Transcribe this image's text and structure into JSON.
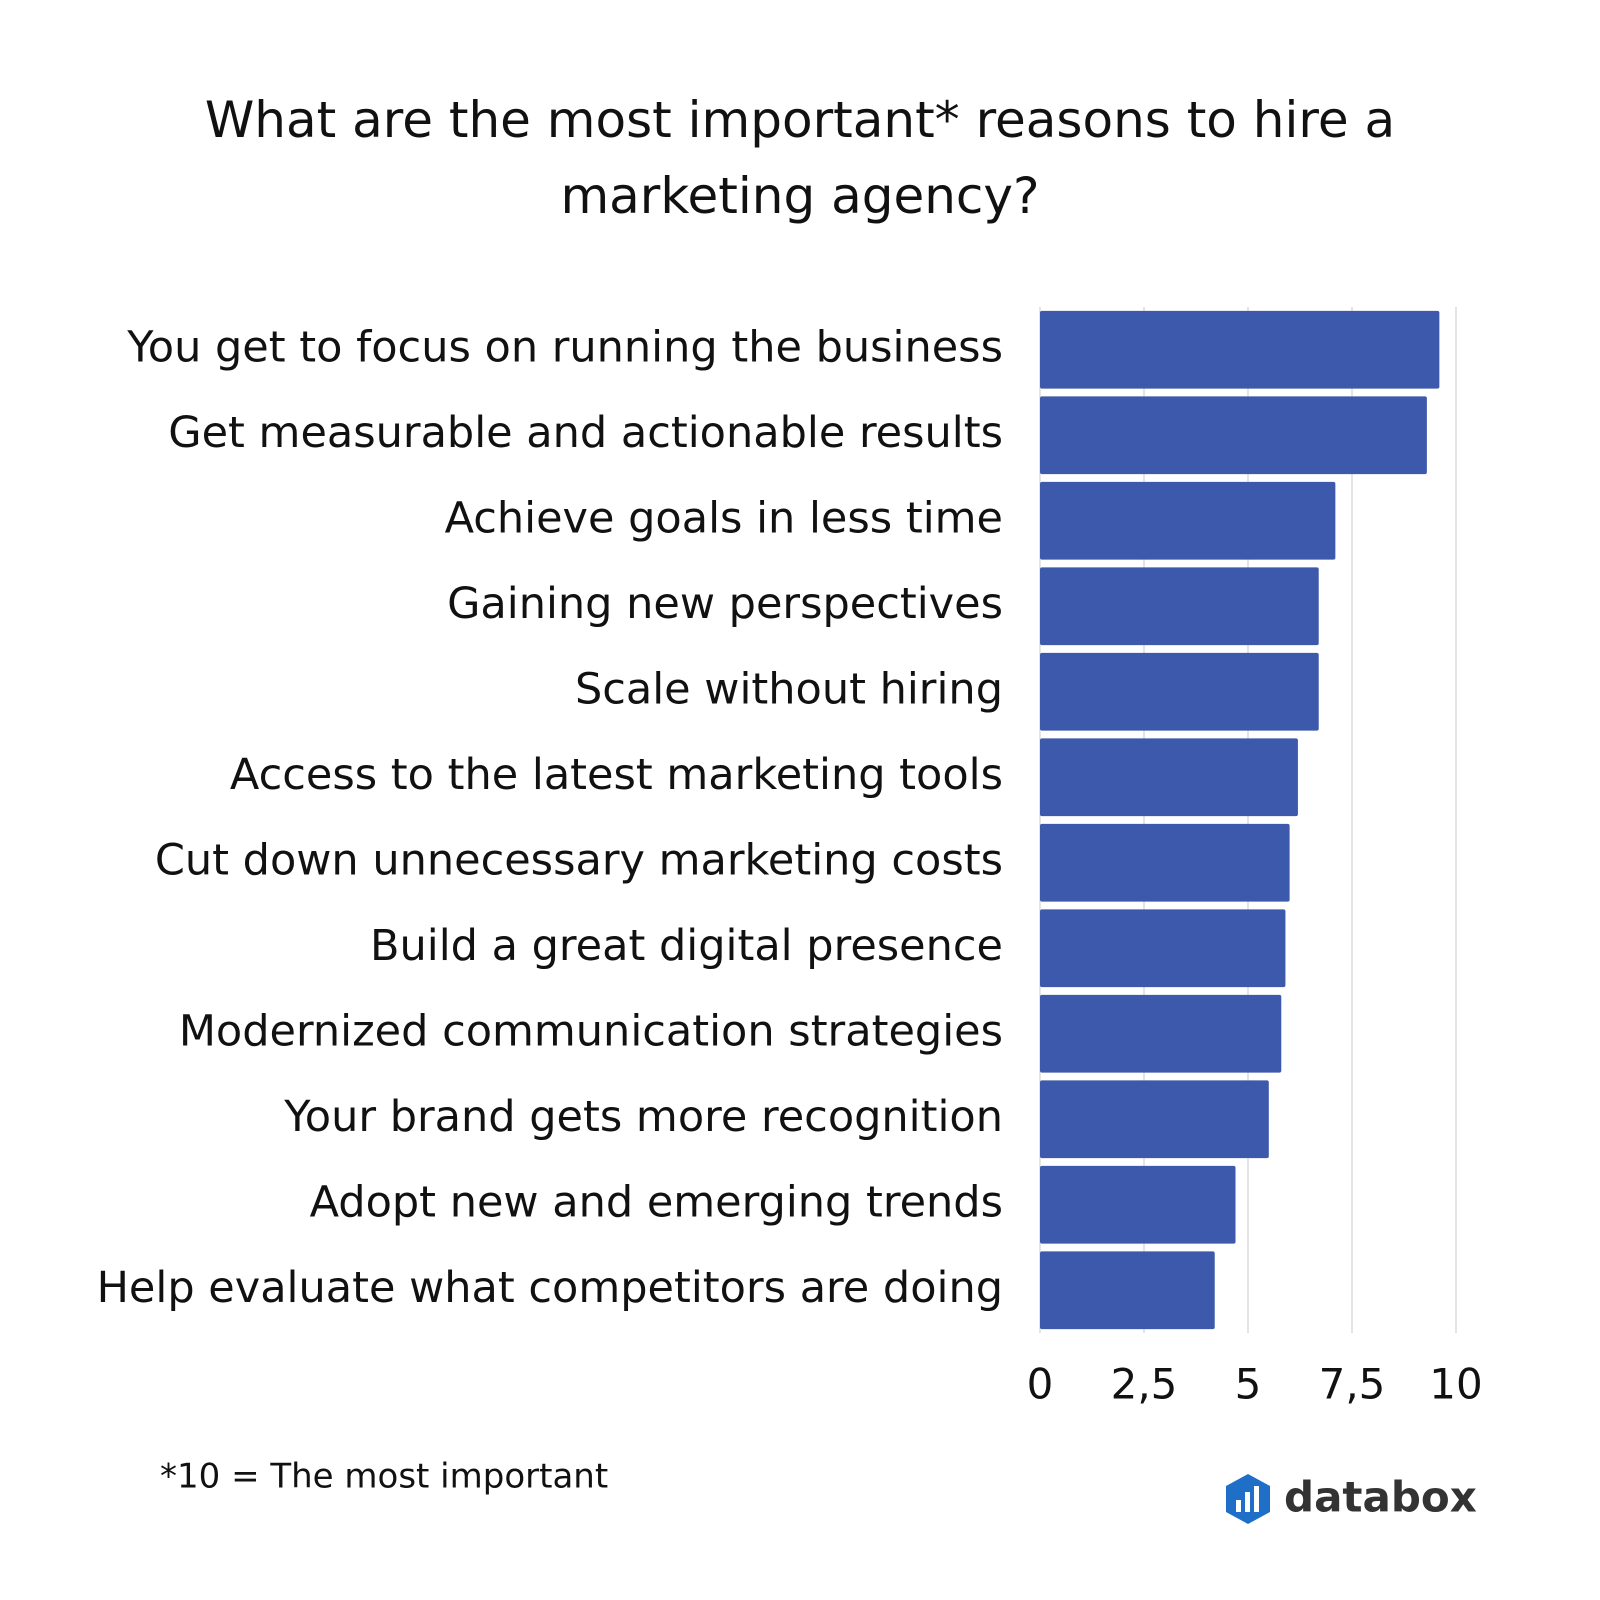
{
  "chart_data": {
    "type": "bar",
    "orientation": "horizontal",
    "title": "What are the most important* reasons to hire a marketing agency?",
    "footnote": "*10 = The most important",
    "categories": [
      "You get to focus on running the business",
      "Get measurable and actionable results",
      "Achieve goals in less time",
      "Gaining new perspectives",
      "Scale without hiring",
      "Access to the latest marketing tools",
      "Cut down unnecessary marketing costs",
      "Build a great digital presence",
      "Modernized communication strategies",
      "Your brand gets more recognition",
      "Adopt new and emerging trends",
      "Help evaluate what competitors are doing"
    ],
    "values": [
      9.6,
      9.3,
      7.1,
      6.7,
      6.7,
      6.2,
      6,
      5.9,
      5.8,
      5.5,
      4.7,
      4.2
    ],
    "color": "#3d59ab",
    "xlim": [
      0,
      10
    ],
    "xticks": [
      0,
      {
        "value": 2.5,
        "label": "2,5"
      },
      5,
      {
        "value": 7.5,
        "label": "7,5"
      },
      10
    ],
    "grid": true
  },
  "brand": "databox"
}
